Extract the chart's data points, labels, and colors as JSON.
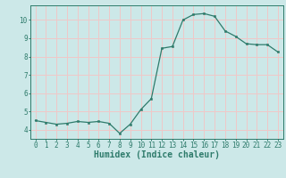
{
  "x": [
    0,
    1,
    2,
    3,
    4,
    5,
    6,
    7,
    8,
    9,
    10,
    11,
    12,
    13,
    14,
    15,
    16,
    17,
    18,
    19,
    20,
    21,
    22,
    23
  ],
  "y": [
    4.5,
    4.4,
    4.3,
    4.35,
    4.45,
    4.4,
    4.45,
    4.35,
    3.8,
    4.3,
    5.1,
    5.7,
    8.45,
    8.55,
    10.0,
    10.3,
    10.35,
    10.2,
    9.4,
    9.1,
    8.7,
    8.65,
    8.65,
    8.25
  ],
  "xlabel": "Humidex (Indice chaleur)",
  "bg_color": "#cce8e8",
  "grid_color": "#f0c8c8",
  "line_color": "#2e7b6b",
  "marker_color": "#2e7b6b",
  "ylim": [
    3.5,
    10.8
  ],
  "xlim": [
    -0.5,
    23.5
  ],
  "yticks": [
    4,
    5,
    6,
    7,
    8,
    9,
    10
  ],
  "xticks": [
    0,
    1,
    2,
    3,
    4,
    5,
    6,
    7,
    8,
    9,
    10,
    11,
    12,
    13,
    14,
    15,
    16,
    17,
    18,
    19,
    20,
    21,
    22,
    23
  ],
  "tick_label_fontsize": 5.5,
  "xlabel_fontsize": 7.0
}
